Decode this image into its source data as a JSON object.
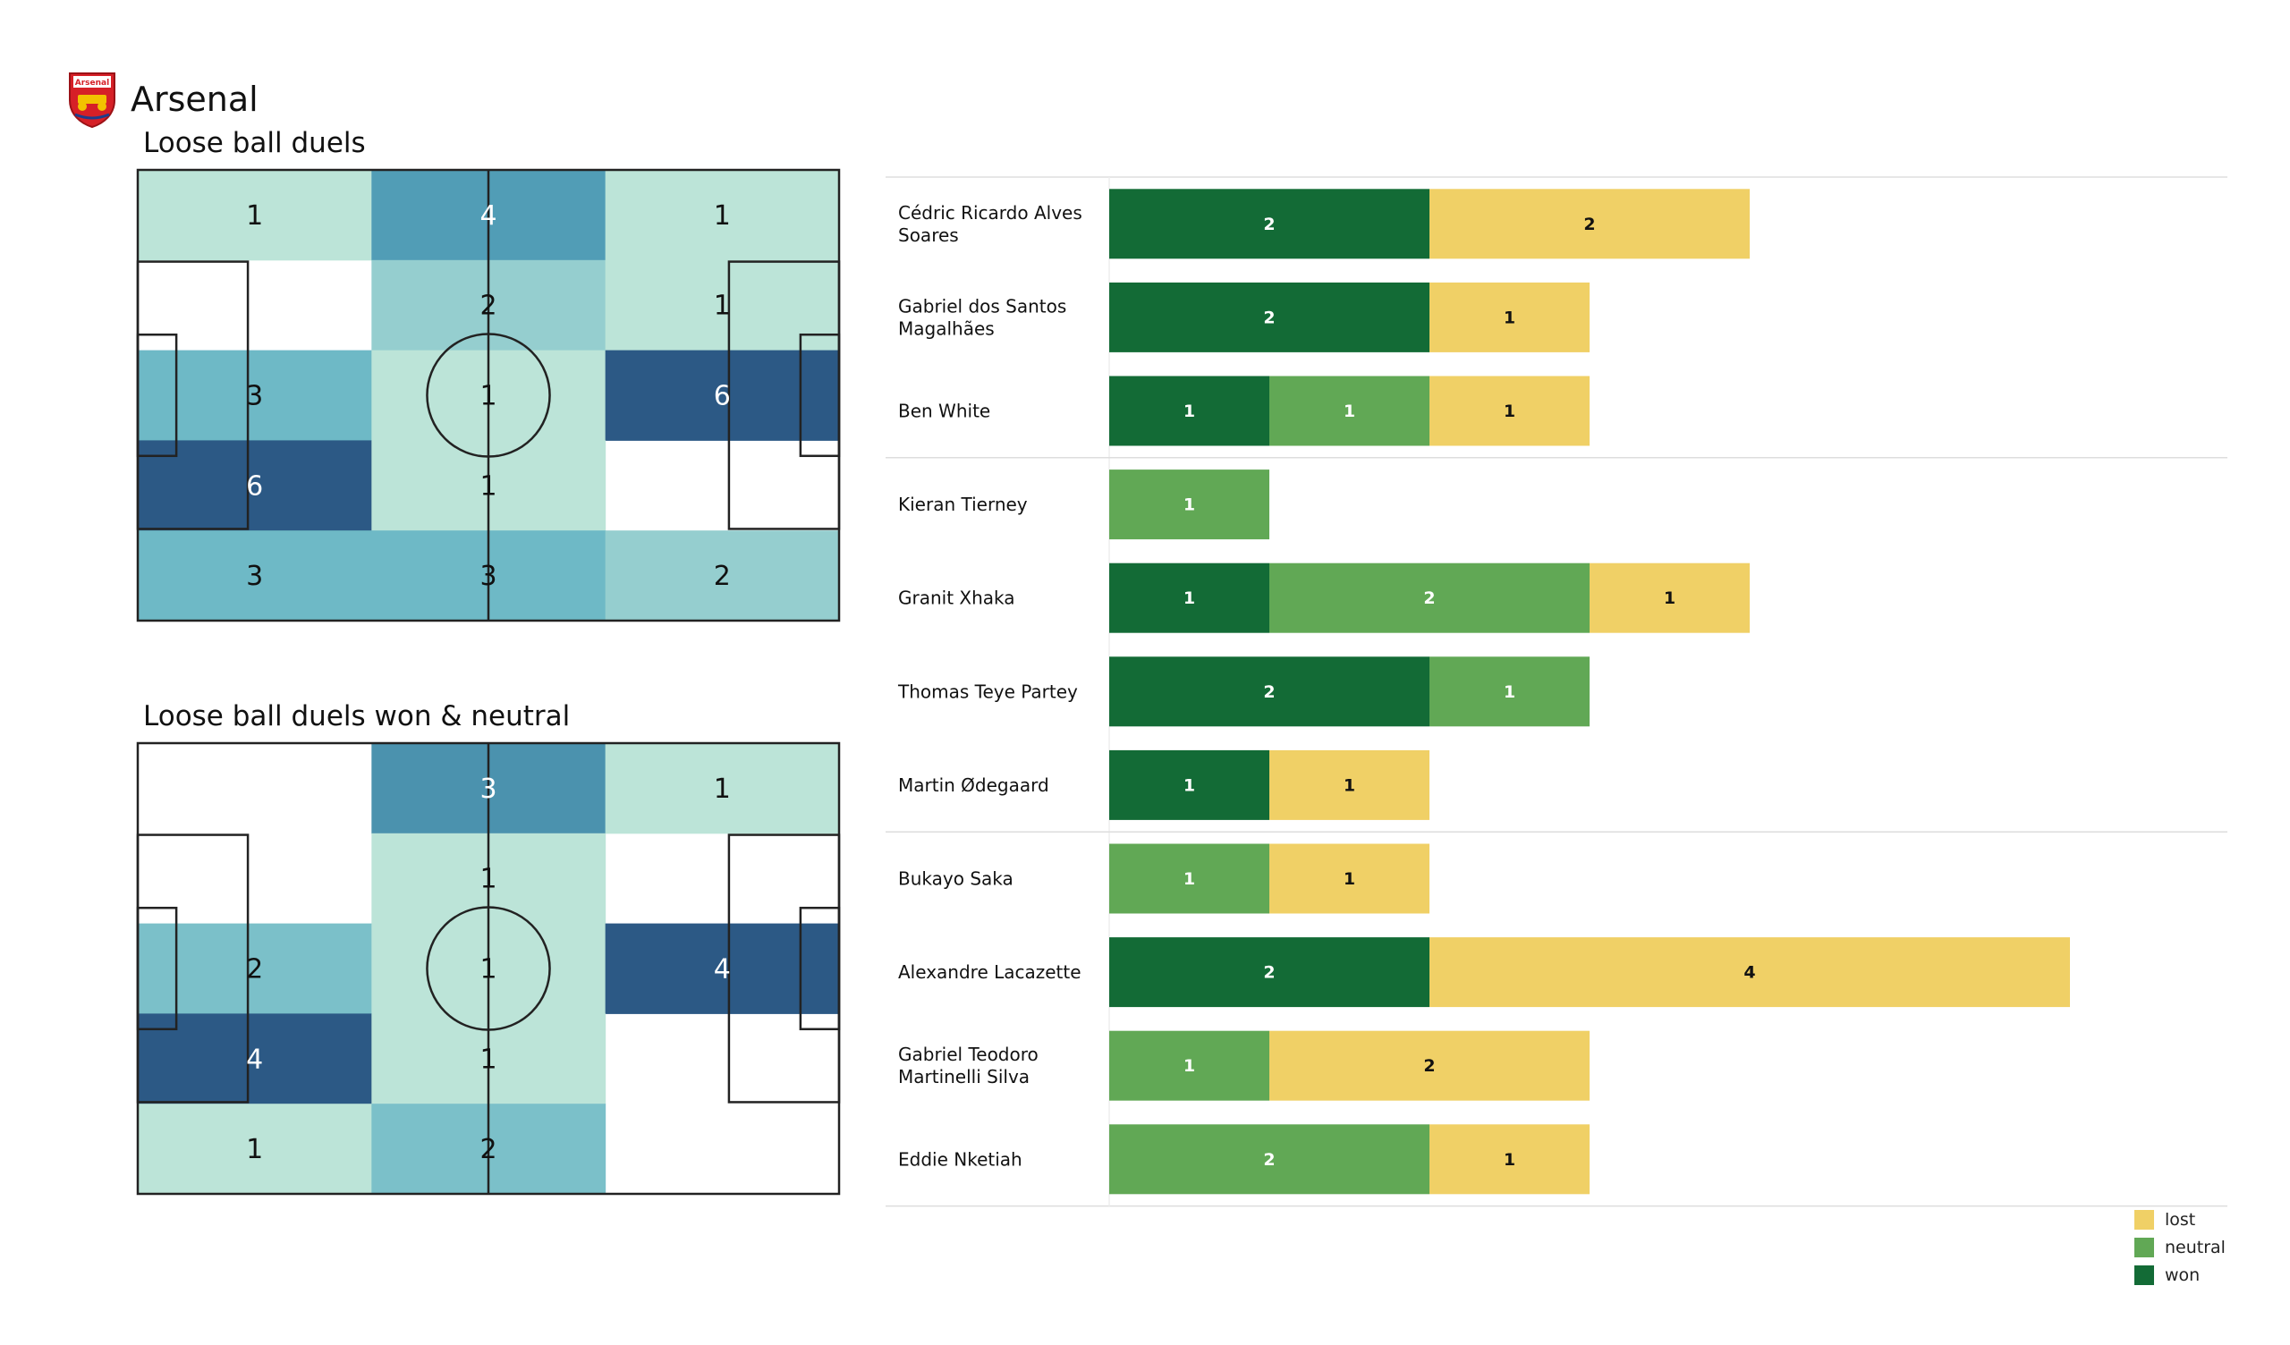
{
  "team": {
    "name": "Arsenal",
    "crest_text": "Arsenal"
  },
  "colors": {
    "won": "#136b36",
    "neutral": "#61a855",
    "lost": "#f0d066",
    "zone_scale_low": "#bce4d8",
    "zone_scale_mid": "#5aaec2",
    "zone_scale_high": "#2c5985",
    "pitch_line": "#222222"
  },
  "chart_data": [
    {
      "type": "heatmap",
      "title": "Loose ball duels",
      "grid": "5 rows x 3 columns",
      "values": [
        [
          1,
          4,
          1
        ],
        [
          null,
          2,
          1
        ],
        [
          3,
          1,
          6
        ],
        [
          6,
          1,
          null
        ],
        [
          3,
          3,
          2
        ]
      ]
    },
    {
      "type": "heatmap",
      "title": "Loose ball duels won & neutral",
      "grid": "5 rows x 3 columns",
      "values": [
        [
          null,
          3,
          1
        ],
        [
          null,
          1,
          null
        ],
        [
          2,
          1,
          4
        ],
        [
          4,
          1,
          null
        ],
        [
          1,
          2,
          null
        ]
      ]
    },
    {
      "type": "bar",
      "orientation": "horizontal",
      "stacked": true,
      "series_names": [
        "won",
        "neutral",
        "lost"
      ],
      "groups_after": [
        3,
        7
      ],
      "players": [
        {
          "name_lines": [
            "Cédric Ricardo Alves",
            "Soares"
          ],
          "won": 2,
          "neutral": 0,
          "lost": 2
        },
        {
          "name_lines": [
            "Gabriel dos Santos",
            "Magalhães"
          ],
          "won": 2,
          "neutral": 0,
          "lost": 1
        },
        {
          "name_lines": [
            "Ben White"
          ],
          "won": 1,
          "neutral": 1,
          "lost": 1
        },
        {
          "name_lines": [
            "Kieran Tierney"
          ],
          "won": 0,
          "neutral": 1,
          "lost": 0
        },
        {
          "name_lines": [
            "Granit Xhaka"
          ],
          "won": 1,
          "neutral": 2,
          "lost": 1
        },
        {
          "name_lines": [
            "Thomas Teye Partey"
          ],
          "won": 2,
          "neutral": 1,
          "lost": 0
        },
        {
          "name_lines": [
            "Martin Ødegaard"
          ],
          "won": 1,
          "neutral": 0,
          "lost": 1
        },
        {
          "name_lines": [
            "Bukayo Saka"
          ],
          "won": 0,
          "neutral": 1,
          "lost": 1
        },
        {
          "name_lines": [
            "Alexandre Lacazette"
          ],
          "won": 2,
          "neutral": 0,
          "lost": 4
        },
        {
          "name_lines": [
            "Gabriel Teodoro",
            "Martinelli Silva"
          ],
          "won": 0,
          "neutral": 1,
          "lost": 2
        },
        {
          "name_lines": [
            "Eddie Nketiah"
          ],
          "won": 0,
          "neutral": 2,
          "lost": 1
        }
      ]
    }
  ],
  "legend": [
    {
      "label": "lost",
      "key": "lost"
    },
    {
      "label": "neutral",
      "key": "neutral"
    },
    {
      "label": "won",
      "key": "won"
    }
  ]
}
